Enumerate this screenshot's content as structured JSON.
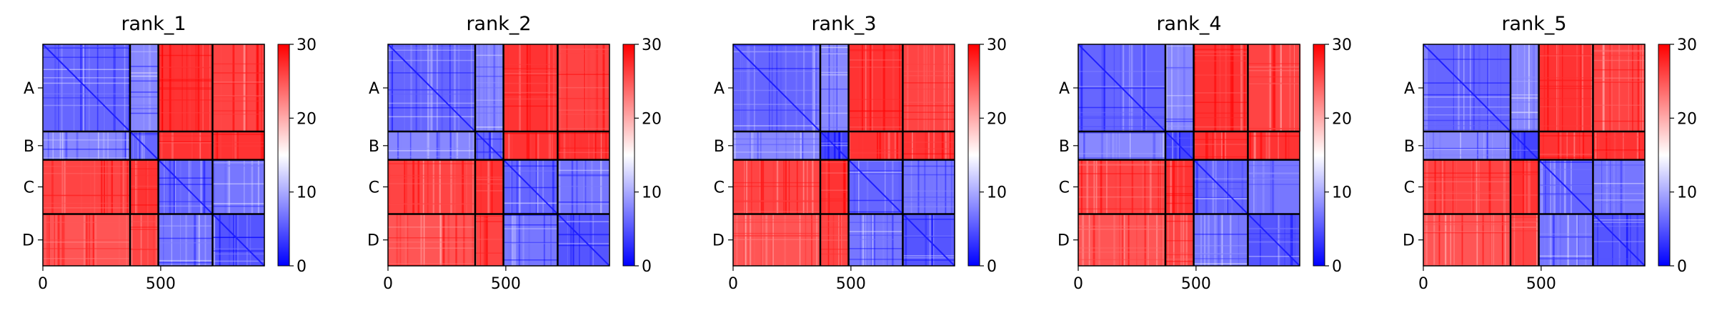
{
  "chart_data": [
    {
      "type": "heatmap",
      "title": "rank_1",
      "xticks": [
        0,
        500
      ],
      "chain_labels": [
        "A",
        "B",
        "C",
        "D"
      ],
      "chain_boundaries": [
        0,
        370,
        490,
        720,
        940
      ],
      "extent": [
        0,
        940
      ],
      "colorbar": {
        "ticks": [
          0,
          10,
          20,
          30
        ],
        "range": [
          0,
          30
        ],
        "colormap": "bwr"
      },
      "block_values": [
        [
          6,
          8,
          27,
          26
        ],
        [
          8,
          6,
          27,
          27
        ],
        [
          26,
          27,
          6,
          7
        ],
        [
          25,
          26,
          7,
          5
        ]
      ]
    },
    {
      "type": "heatmap",
      "title": "rank_2",
      "xticks": [
        0,
        500
      ],
      "chain_labels": [
        "A",
        "B",
        "C",
        "D"
      ],
      "chain_boundaries": [
        0,
        370,
        490,
        720,
        940
      ],
      "extent": [
        0,
        940
      ],
      "colorbar": {
        "ticks": [
          0,
          10,
          20,
          30
        ],
        "range": [
          0,
          30
        ],
        "colormap": "bwr"
      },
      "block_values": [
        [
          6,
          8,
          27,
          26
        ],
        [
          8,
          6,
          27,
          27
        ],
        [
          26,
          27,
          6,
          7
        ],
        [
          25,
          26,
          7,
          5
        ]
      ]
    },
    {
      "type": "heatmap",
      "title": "rank_3",
      "xticks": [
        0,
        500
      ],
      "chain_labels": [
        "A",
        "B",
        "C",
        "D"
      ],
      "chain_boundaries": [
        0,
        370,
        490,
        720,
        940
      ],
      "extent": [
        0,
        940
      ],
      "colorbar": {
        "ticks": [
          0,
          10,
          20,
          30
        ],
        "range": [
          0,
          30
        ],
        "colormap": "bwr"
      },
      "block_values": [
        [
          6,
          8,
          27,
          26
        ],
        [
          8,
          4,
          27,
          27
        ],
        [
          26,
          27,
          6,
          7
        ],
        [
          25,
          26,
          7,
          5
        ]
      ]
    },
    {
      "type": "heatmap",
      "title": "rank_4",
      "xticks": [
        0,
        500
      ],
      "chain_labels": [
        "A",
        "B",
        "C",
        "D"
      ],
      "chain_boundaries": [
        0,
        370,
        490,
        720,
        940
      ],
      "extent": [
        0,
        940
      ],
      "colorbar": {
        "ticks": [
          0,
          10,
          20,
          30
        ],
        "range": [
          0,
          30
        ],
        "colormap": "bwr"
      },
      "block_values": [
        [
          6,
          8,
          27,
          26
        ],
        [
          8,
          4,
          27,
          27
        ],
        [
          26,
          27,
          6,
          7
        ],
        [
          25,
          26,
          7,
          5
        ]
      ]
    },
    {
      "type": "heatmap",
      "title": "rank_5",
      "xticks": [
        0,
        500
      ],
      "chain_labels": [
        "A",
        "B",
        "C",
        "D"
      ],
      "chain_boundaries": [
        0,
        370,
        490,
        720,
        940
      ],
      "extent": [
        0,
        940
      ],
      "colorbar": {
        "ticks": [
          0,
          10,
          20,
          30
        ],
        "range": [
          0,
          30
        ],
        "colormap": "bwr"
      },
      "block_values": [
        [
          6,
          8,
          27,
          26
        ],
        [
          8,
          4,
          27,
          27
        ],
        [
          26,
          27,
          6,
          7
        ],
        [
          25,
          26,
          7,
          5
        ]
      ]
    }
  ]
}
